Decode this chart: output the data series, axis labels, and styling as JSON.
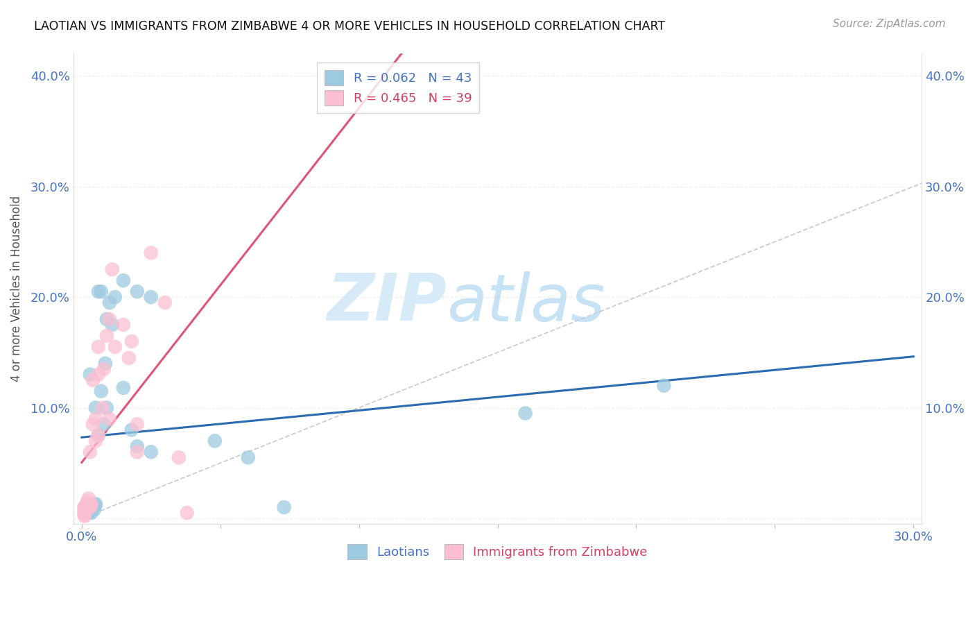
{
  "title": "LAOTIAN VS IMMIGRANTS FROM ZIMBABWE 4 OR MORE VEHICLES IN HOUSEHOLD CORRELATION CHART",
  "source": "Source: ZipAtlas.com",
  "ylabel": "4 or more Vehicles in Household",
  "xlim": [
    -0.3,
    30.3
  ],
  "ylim": [
    -0.5,
    42.0
  ],
  "xtick_positions": [
    0,
    5,
    10,
    15,
    20,
    25,
    30
  ],
  "ytick_positions": [
    0,
    10,
    20,
    30,
    40
  ],
  "xtick_labels": [
    "0.0%",
    "",
    "",
    "",
    "",
    "",
    "30.0%"
  ],
  "ytick_labels": [
    "",
    "10.0%",
    "20.0%",
    "30.0%",
    "40.0%"
  ],
  "legend_r1": "R = 0.062",
  "legend_n1": "N = 43",
  "legend_r2": "R = 0.465",
  "legend_n2": "N = 39",
  "blue_color": "#9ecae1",
  "pink_color": "#fcbfd2",
  "blue_line_color": "#2b6cb0",
  "pink_line_color": "#e05577",
  "diagonal_color": "#cccccc",
  "grid_color": "#eeeeee",
  "laotian_x": [
    0.1,
    0.1,
    0.1,
    0.15,
    0.15,
    0.2,
    0.2,
    0.2,
    0.2,
    0.3,
    0.3,
    0.3,
    0.3,
    0.3,
    0.35,
    0.4,
    0.45,
    0.5,
    0.5,
    0.5,
    0.6,
    0.6,
    0.7,
    0.7,
    0.8,
    0.85,
    0.9,
    0.9,
    1.0,
    1.1,
    1.2,
    1.5,
    1.5,
    1.8,
    2.0,
    2.0,
    2.5,
    2.5,
    4.8,
    6.0,
    7.3,
    16.0,
    21.0
  ],
  "laotian_y": [
    0.5,
    0.8,
    1.0,
    0.5,
    1.1,
    0.5,
    0.7,
    1.0,
    1.2,
    0.6,
    0.7,
    0.8,
    1.1,
    13.0,
    0.5,
    1.1,
    0.8,
    1.2,
    1.3,
    10.0,
    7.5,
    20.5,
    11.5,
    20.5,
    8.5,
    14.0,
    10.0,
    18.0,
    19.5,
    17.5,
    20.0,
    11.8,
    21.5,
    8.0,
    20.5,
    6.5,
    20.0,
    6.0,
    7.0,
    5.5,
    1.0,
    9.5,
    12.0
  ],
  "zimbabwe_x": [
    0.1,
    0.1,
    0.1,
    0.1,
    0.1,
    0.1,
    0.1,
    0.15,
    0.2,
    0.2,
    0.25,
    0.3,
    0.3,
    0.3,
    0.3,
    0.35,
    0.4,
    0.4,
    0.5,
    0.5,
    0.6,
    0.6,
    0.6,
    0.75,
    0.8,
    0.9,
    1.0,
    1.0,
    1.1,
    1.2,
    1.5,
    1.7,
    1.8,
    2.0,
    2.0,
    2.5,
    3.0,
    3.5,
    3.8
  ],
  "zimbabwe_y": [
    0.2,
    0.3,
    0.4,
    0.5,
    0.7,
    0.8,
    1.0,
    1.2,
    1.0,
    1.5,
    1.8,
    1.0,
    1.1,
    1.3,
    6.0,
    1.2,
    8.5,
    12.5,
    7.0,
    9.0,
    7.5,
    13.0,
    15.5,
    10.0,
    13.5,
    16.5,
    18.0,
    9.0,
    22.5,
    15.5,
    17.5,
    14.5,
    16.0,
    6.0,
    8.5,
    24.0,
    19.5,
    5.5,
    0.5
  ]
}
